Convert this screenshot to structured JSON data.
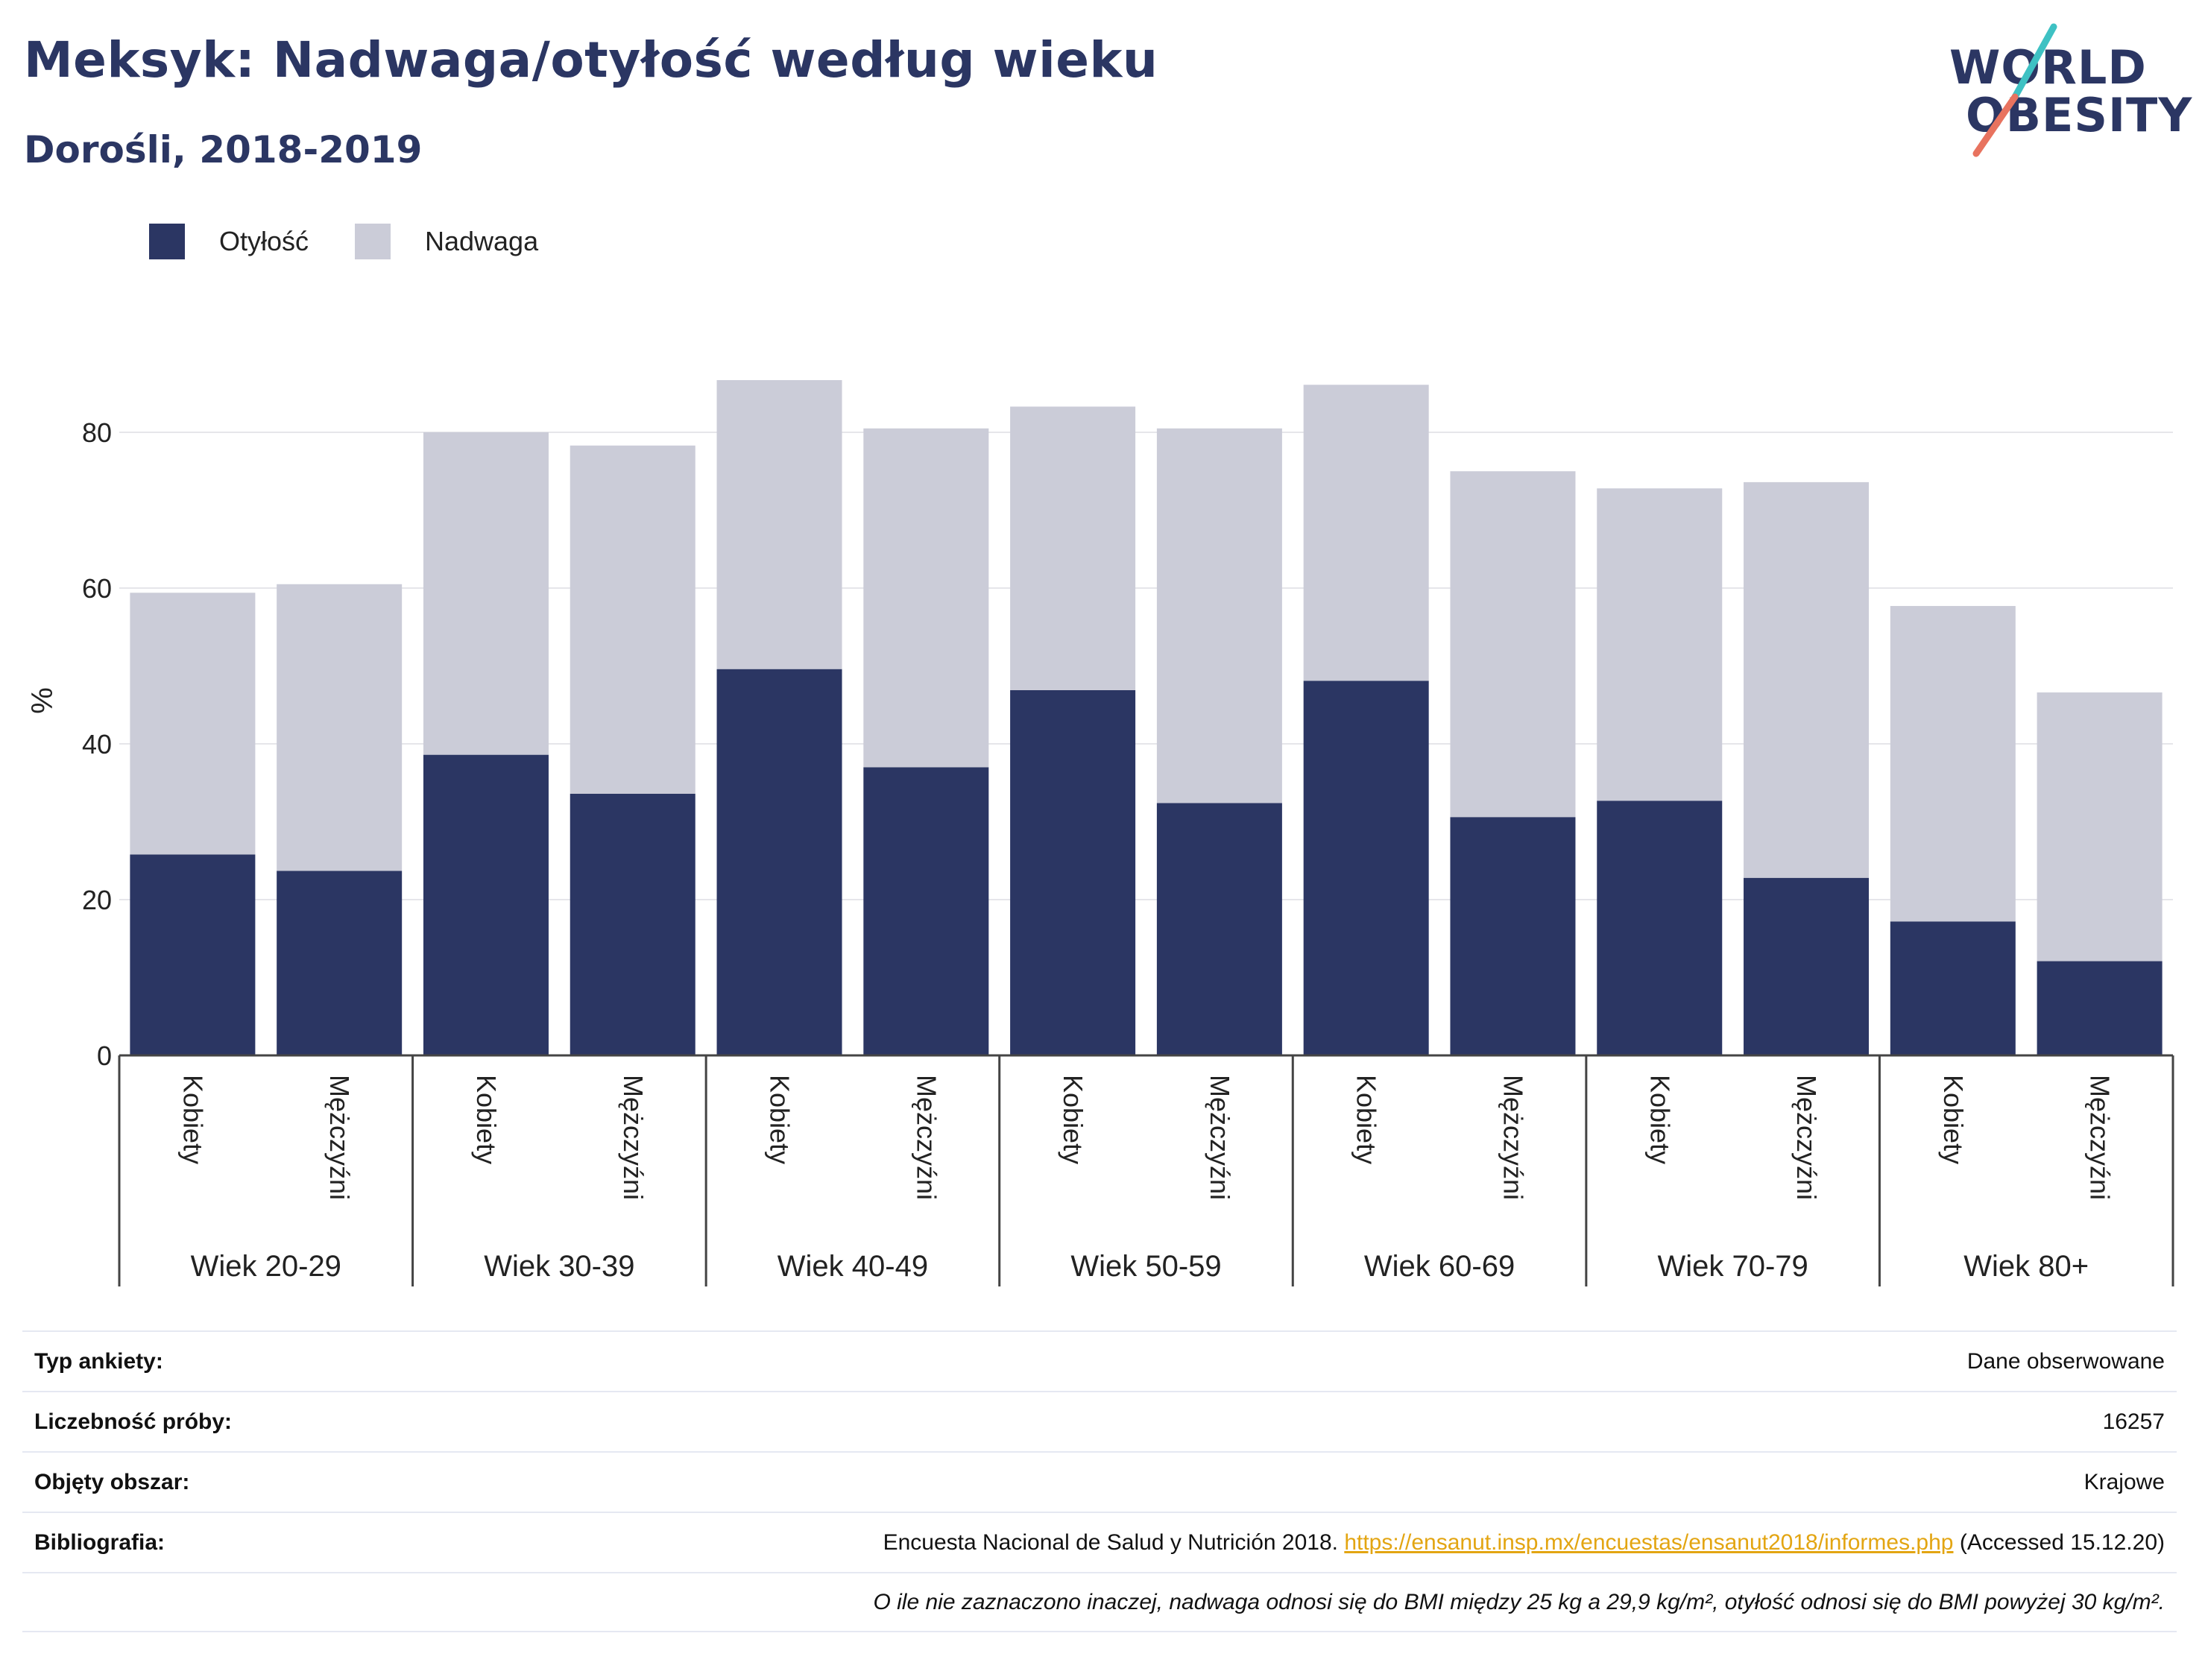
{
  "header": {
    "title": "Meksyk: Nadwaga/otyłość według wieku",
    "subtitle": "Dorośli, 2018-2019"
  },
  "logo": {
    "line1": "WORLD",
    "line2": "OBESITY"
  },
  "legend": [
    {
      "label": "Otyłość",
      "color": "#2b3663"
    },
    {
      "label": "Nadwaga",
      "color": "#cbccd8"
    }
  ],
  "chart_data": {
    "type": "bar",
    "stacked": true,
    "ylabel": "%",
    "ylim": [
      0,
      90
    ],
    "yticks": [
      0,
      20,
      40,
      60,
      80
    ],
    "grid": true,
    "legend_position": "top-left",
    "groups": [
      "Wiek 20-29",
      "Wiek 30-39",
      "Wiek 40-49",
      "Wiek 50-59",
      "Wiek 60-69",
      "Wiek 70-79",
      "Wiek 80+"
    ],
    "subcategories": [
      "Kobiety",
      "Mężczyźni"
    ],
    "series": [
      {
        "name": "Otyłość",
        "color": "#2b3663",
        "values": [
          25.8,
          23.7,
          38.6,
          33.6,
          49.6,
          37.0,
          46.9,
          32.4,
          48.1,
          30.6,
          32.7,
          22.8,
          17.2,
          12.1
        ]
      },
      {
        "name": "Nadwaga",
        "color": "#cbccd8",
        "values": [
          33.6,
          36.8,
          41.4,
          44.7,
          37.1,
          43.5,
          36.4,
          48.1,
          38.0,
          44.4,
          40.1,
          50.8,
          40.5,
          34.5
        ]
      }
    ]
  },
  "info": {
    "rows": [
      {
        "label": "Typ ankiety:",
        "value": "Dane obserwowane"
      },
      {
        "label": "Liczebność próby:",
        "value": "16257"
      },
      {
        "label": "Objęty obszar:",
        "value": "Krajowe"
      }
    ],
    "bibliography": {
      "label": "Bibliografia:",
      "text_before": "Encuesta Nacional de Salud y Nutrición 2018. ",
      "link": "https://ensanut.insp.mx/encuestas/ensanut2018/informes.php",
      "text_after": " (Accessed 15.12.20)"
    },
    "note": "O ile nie zaznaczono inaczej, nadwaga odnosi się do BMI między 25 kg a 29,9 kg/m², otyłość odnosi się do BMI powyżej 30 kg/m²."
  }
}
